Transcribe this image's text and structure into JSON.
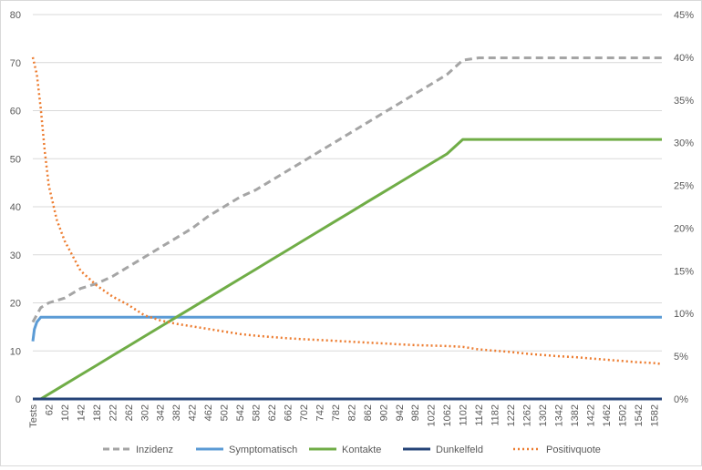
{
  "chart_data": {
    "type": "line",
    "title": "",
    "xlabel": "",
    "ylabel": "",
    "x_first_label": "Tests",
    "x_ticks": [
      62,
      102,
      142,
      182,
      222,
      262,
      302,
      342,
      382,
      422,
      462,
      502,
      542,
      582,
      622,
      662,
      702,
      742,
      782,
      822,
      862,
      902,
      942,
      982,
      1022,
      1062,
      1102,
      1142,
      1182,
      1222,
      1262,
      1302,
      1342,
      1382,
      1422,
      1462,
      1502,
      1542,
      1582
    ],
    "xlim": [
      22,
      1602
    ],
    "ylim_left": [
      0,
      80
    ],
    "y_ticks_left": [
      "0",
      "10",
      "20",
      "30",
      "40",
      "50",
      "60",
      "70",
      "80"
    ],
    "ylim_right": [
      0,
      0.45
    ],
    "y_ticks_right": [
      "0%",
      "5%",
      "10%",
      "15%",
      "20%",
      "25%",
      "30%",
      "35%",
      "40%",
      "45%"
    ],
    "grid": "horizontal",
    "legend_position": "bottom",
    "series": [
      {
        "name": "Inzidenz",
        "axis": "left",
        "color": "#a5a5a5",
        "dash": "dashed",
        "points": [
          [
            22,
            16
          ],
          [
            42,
            19
          ],
          [
            62,
            20
          ],
          [
            102,
            21
          ],
          [
            142,
            23
          ],
          [
            182,
            24
          ],
          [
            222,
            25.5
          ],
          [
            262,
            27.5
          ],
          [
            302,
            29.5
          ],
          [
            342,
            31.5
          ],
          [
            382,
            33.5
          ],
          [
            422,
            35.5
          ],
          [
            462,
            38
          ],
          [
            502,
            40
          ],
          [
            542,
            42
          ],
          [
            582,
            43.5
          ],
          [
            622,
            45.5
          ],
          [
            662,
            47.5
          ],
          [
            702,
            49.5
          ],
          [
            742,
            51.5
          ],
          [
            782,
            53.5
          ],
          [
            822,
            55.5
          ],
          [
            862,
            57.5
          ],
          [
            902,
            59.5
          ],
          [
            942,
            61.5
          ],
          [
            982,
            63.5
          ],
          [
            1022,
            65.5
          ],
          [
            1062,
            67.5
          ],
          [
            1102,
            70.5
          ],
          [
            1142,
            71
          ],
          [
            1582,
            71
          ],
          [
            1602,
            71
          ]
        ]
      },
      {
        "name": "Symptomatisch",
        "axis": "left",
        "color": "#5b9bd5",
        "dash": "solid",
        "points": [
          [
            22,
            12
          ],
          [
            26,
            14.5
          ],
          [
            32,
            16
          ],
          [
            42,
            17
          ],
          [
            1602,
            17
          ]
        ]
      },
      {
        "name": "Kontakte",
        "axis": "left",
        "color": "#70ad47",
        "dash": "solid",
        "points": [
          [
            22,
            0
          ],
          [
            42,
            0
          ],
          [
            62,
            1
          ],
          [
            102,
            3
          ],
          [
            142,
            5
          ],
          [
            182,
            7
          ],
          [
            222,
            9
          ],
          [
            262,
            11
          ],
          [
            302,
            13
          ],
          [
            342,
            15
          ],
          [
            382,
            17
          ],
          [
            422,
            19
          ],
          [
            462,
            21
          ],
          [
            502,
            23
          ],
          [
            542,
            25
          ],
          [
            582,
            27
          ],
          [
            622,
            29
          ],
          [
            662,
            31
          ],
          [
            702,
            33
          ],
          [
            742,
            35
          ],
          [
            782,
            37
          ],
          [
            822,
            39
          ],
          [
            862,
            41
          ],
          [
            902,
            43
          ],
          [
            942,
            45
          ],
          [
            982,
            47
          ],
          [
            1022,
            49
          ],
          [
            1062,
            51
          ],
          [
            1102,
            54
          ],
          [
            1602,
            54
          ]
        ]
      },
      {
        "name": "Dunkelfeld",
        "axis": "left",
        "color": "#264478",
        "dash": "solid",
        "points": [
          [
            22,
            0
          ],
          [
            1602,
            0
          ]
        ]
      },
      {
        "name": "Positivquote",
        "axis": "right",
        "color": "#ed7d31",
        "dash": "dotted",
        "points": [
          [
            22,
            0.4
          ],
          [
            32,
            0.38
          ],
          [
            42,
            0.34
          ],
          [
            52,
            0.29
          ],
          [
            62,
            0.25
          ],
          [
            82,
            0.21
          ],
          [
            102,
            0.185
          ],
          [
            142,
            0.15
          ],
          [
            182,
            0.133
          ],
          [
            222,
            0.12
          ],
          [
            262,
            0.11
          ],
          [
            302,
            0.098
          ],
          [
            342,
            0.092
          ],
          [
            382,
            0.088
          ],
          [
            422,
            0.085
          ],
          [
            462,
            0.082
          ],
          [
            502,
            0.079
          ],
          [
            542,
            0.076
          ],
          [
            582,
            0.074
          ],
          [
            622,
            0.0725
          ],
          [
            662,
            0.071
          ],
          [
            702,
            0.07
          ],
          [
            742,
            0.069
          ],
          [
            782,
            0.068
          ],
          [
            822,
            0.067
          ],
          [
            862,
            0.066
          ],
          [
            902,
            0.065
          ],
          [
            942,
            0.064
          ],
          [
            982,
            0.063
          ],
          [
            1022,
            0.0625
          ],
          [
            1062,
            0.062
          ],
          [
            1102,
            0.061
          ],
          [
            1142,
            0.058
          ],
          [
            1182,
            0.0565
          ],
          [
            1222,
            0.055
          ],
          [
            1262,
            0.053
          ],
          [
            1302,
            0.0515
          ],
          [
            1342,
            0.05
          ],
          [
            1382,
            0.049
          ],
          [
            1422,
            0.0475
          ],
          [
            1462,
            0.046
          ],
          [
            1502,
            0.0445
          ],
          [
            1542,
            0.043
          ],
          [
            1582,
            0.042
          ],
          [
            1602,
            0.041
          ]
        ]
      }
    ]
  }
}
